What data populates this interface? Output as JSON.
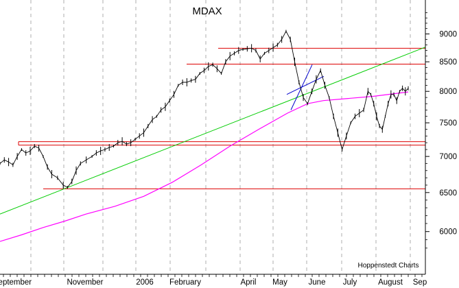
{
  "chart_data": {
    "type": "line",
    "title": "MDAX",
    "credit": "Hoppenstedt Charts",
    "x_ticks": [
      "September",
      "November",
      "2006",
      "February",
      "April",
      "May",
      "June",
      "July",
      "August",
      "Sep"
    ],
    "y_ticks": [
      6000,
      6500,
      7000,
      7500,
      8000,
      8500,
      9000
    ],
    "y_scale": "log",
    "ylim": [
      5750,
      9500
    ],
    "grid": "vertical-dashed",
    "colors": {
      "price": "#000000",
      "moving_average": "#ff00ff",
      "trendline": "#00cc00",
      "levels": "#dd0000",
      "wedge": "#0000cc"
    },
    "series": [
      {
        "style": "daily-bars",
        "x": [
          0,
          3,
          6,
          9,
          12,
          15,
          18,
          21,
          24,
          27,
          30,
          33,
          36,
          40,
          44,
          47,
          50,
          53,
          56,
          60,
          64,
          67,
          70,
          73,
          76,
          79,
          82,
          85,
          88,
          91,
          94,
          97,
          100,
          103,
          106,
          109,
          112,
          115,
          118,
          121,
          124,
          127,
          130,
          133,
          136,
          139,
          142,
          145,
          148,
          151,
          154,
          157,
          160,
          163,
          166,
          169,
          172,
          175,
          178,
          181,
          184,
          187,
          190,
          193,
          196,
          199,
          202,
          205,
          208,
          211,
          214,
          217,
          220,
          223,
          226,
          229,
          232,
          235,
          238,
          241,
          244,
          247,
          250,
          253,
          256,
          258,
          260,
          262,
          264,
          266,
          268,
          270,
          272,
          274,
          276,
          278,
          280,
          282,
          284
        ],
        "y": [
          6900,
          6950,
          6920,
          6880,
          7000,
          7100,
          7050,
          7080,
          7150,
          7120,
          7000,
          6850,
          6750,
          6700,
          6600,
          6570,
          6650,
          6800,
          6900,
          6950,
          7000,
          7050,
          7080,
          7100,
          7130,
          7150,
          7200,
          7220,
          7180,
          7200,
          7250,
          7300,
          7350,
          7450,
          7550,
          7600,
          7700,
          7750,
          7850,
          7950,
          8100,
          8150,
          8150,
          8180,
          8200,
          8300,
          8350,
          8420,
          8450,
          8380,
          8300,
          8500,
          8600,
          8650,
          8700,
          8720,
          8730,
          8740,
          8700,
          8550,
          8650,
          8700,
          8750,
          8800,
          8900,
          9050,
          8900,
          8500,
          8150,
          7900,
          7800,
          8000,
          8200,
          8350,
          8100,
          7900,
          7600,
          7350,
          7100,
          7300,
          7500,
          7600,
          7650,
          7700,
          8000,
          7950,
          7800,
          7600,
          7450,
          7400,
          7600,
          7800,
          7950,
          7950,
          7850,
          8000,
          8050,
          8000,
          8050
        ]
      },
      {
        "style": "moving-average",
        "x": [
          0,
          15,
          30,
          45,
          60,
          80,
          100,
          120,
          140,
          160,
          180,
          200,
          214,
          225,
          240,
          260,
          284
        ],
        "y": [
          5880,
          5960,
          6050,
          6130,
          6220,
          6320,
          6450,
          6640,
          6880,
          7150,
          7400,
          7650,
          7800,
          7850,
          7880,
          7920,
          7990
        ]
      }
    ],
    "trendlines": [
      {
        "color": "green",
        "y_start": 6220,
        "y_end": 8760
      },
      {
        "color": "blue",
        "y_start": 7700,
        "y_end": 8450
      },
      {
        "color": "blue",
        "y_start": 7950,
        "y_end": 8250
      }
    ],
    "horizontal_levels": [
      8740,
      8460,
      7215,
      7165,
      6550
    ]
  }
}
